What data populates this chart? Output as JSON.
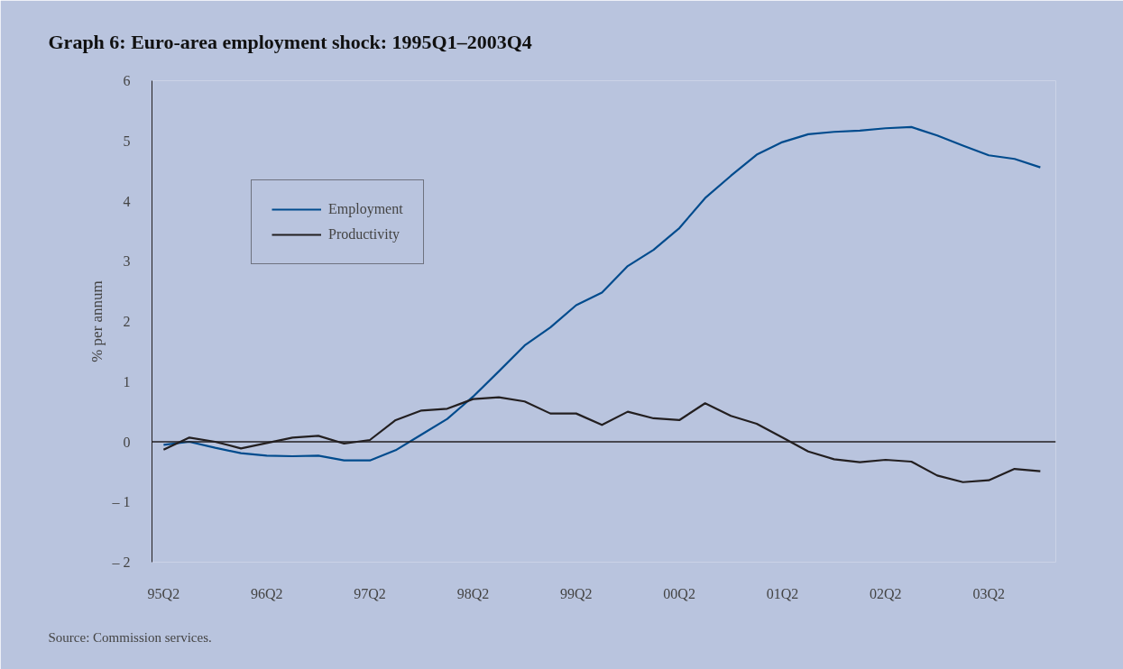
{
  "chart_data": {
    "type": "line",
    "title": "Graph 6:    Euro-area employment shock: 1995Q1–2003Q4",
    "ylabel": "% per annum",
    "annotations": [
      "Source: Commission services."
    ],
    "categories": [
      "95Q2",
      null,
      null,
      null,
      "96Q2",
      null,
      null,
      null,
      "97Q2",
      null,
      null,
      null,
      "98Q2",
      null,
      null,
      null,
      "99Q2",
      null,
      null,
      null,
      "00Q2",
      null,
      null,
      null,
      "01Q2",
      null,
      null,
      null,
      "02Q2",
      null,
      null,
      null,
      "03Q2",
      null,
      null
    ],
    "series": [
      {
        "name": "Employment",
        "color": "#004b8d",
        "values": [
          -0.05,
          0.0,
          -0.1,
          -0.19,
          -0.23,
          -0.24,
          -0.23,
          -0.31,
          -0.31,
          -0.14,
          0.12,
          0.38,
          0.75,
          1.17,
          1.6,
          1.9,
          2.27,
          2.48,
          2.92,
          3.19,
          3.55,
          4.05,
          4.42,
          4.77,
          4.98,
          5.11,
          5.15,
          5.17,
          5.21,
          5.23,
          5.09,
          4.92,
          4.76,
          4.7,
          4.56
        ]
      },
      {
        "name": "Productivity",
        "color": "#231f20",
        "values": [
          -0.13,
          0.07,
          0.0,
          -0.11,
          -0.02,
          0.07,
          0.1,
          -0.03,
          0.03,
          0.36,
          0.52,
          0.55,
          0.71,
          0.74,
          0.67,
          0.47,
          0.47,
          0.28,
          0.5,
          0.39,
          0.36,
          0.64,
          0.43,
          0.3,
          0.07,
          -0.16,
          -0.29,
          -0.34,
          -0.3,
          -0.33,
          -0.56,
          -0.67,
          -0.64,
          -0.45,
          -0.49
        ]
      }
    ],
    "ylim": [
      -2,
      6
    ],
    "yticks": [
      {
        "value": -2,
        "label": "– 2"
      },
      {
        "value": -1,
        "label": "– 1"
      },
      0,
      1,
      2,
      3,
      4,
      5,
      6
    ],
    "ref_lines": [
      {
        "axis": "y",
        "value": 0,
        "color": "#231f20"
      }
    ],
    "grid": false,
    "legend": "top left",
    "marker": "none",
    "line_style": "solid"
  }
}
